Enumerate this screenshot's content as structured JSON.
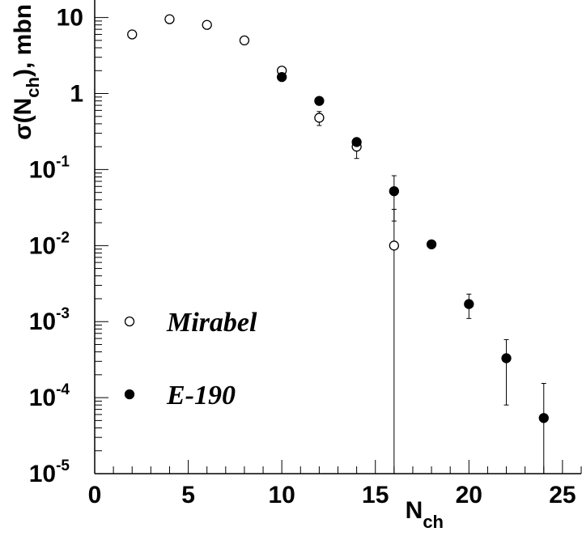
{
  "chart_data": {
    "type": "scatter",
    "log_y": true,
    "xlabel": "N",
    "xlabel_sub": "ch",
    "ylabel": "σ(N",
    "ylabel_sub": "ch",
    "ylabel_end": "), mbn",
    "xlim": [
      0,
      26
    ],
    "ylim": [
      1e-05,
      17
    ],
    "xticks": [
      0,
      5,
      10,
      15,
      20,
      25
    ],
    "yticks": [
      {
        "value": 1e-05,
        "label": "10",
        "exponent": "-5"
      },
      {
        "value": 0.0001,
        "label": "10",
        "exponent": "-4"
      },
      {
        "value": 0.001,
        "label": "10",
        "exponent": "-3"
      },
      {
        "value": 0.01,
        "label": "10",
        "exponent": "-2"
      },
      {
        "value": 0.1,
        "label": "10",
        "exponent": "-1"
      },
      1,
      10
    ],
    "legend": "left",
    "series": [
      {
        "name": "Mirabel",
        "marker": "open",
        "color": "#000000",
        "x": [
          2,
          4,
          6,
          8,
          10,
          12,
          14,
          16
        ],
        "values": [
          6.0,
          9.5,
          8.0,
          5.0,
          2.0,
          0.48,
          0.2,
          0.01
        ],
        "errors": [
          0,
          0,
          0,
          0,
          0,
          0.1,
          0.06,
          0.02
        ]
      },
      {
        "name": "E-190",
        "marker": "filled",
        "color": "#000000",
        "x": [
          10,
          12,
          14,
          16,
          18,
          20,
          22,
          24
        ],
        "values": [
          1.65,
          0.8,
          0.23,
          0.052,
          0.0104,
          0.0017,
          0.00033,
          5.4e-05
        ],
        "errors": [
          0,
          0,
          0,
          0.031,
          0,
          0.0006,
          0.00025,
          0.0001
        ]
      }
    ]
  }
}
